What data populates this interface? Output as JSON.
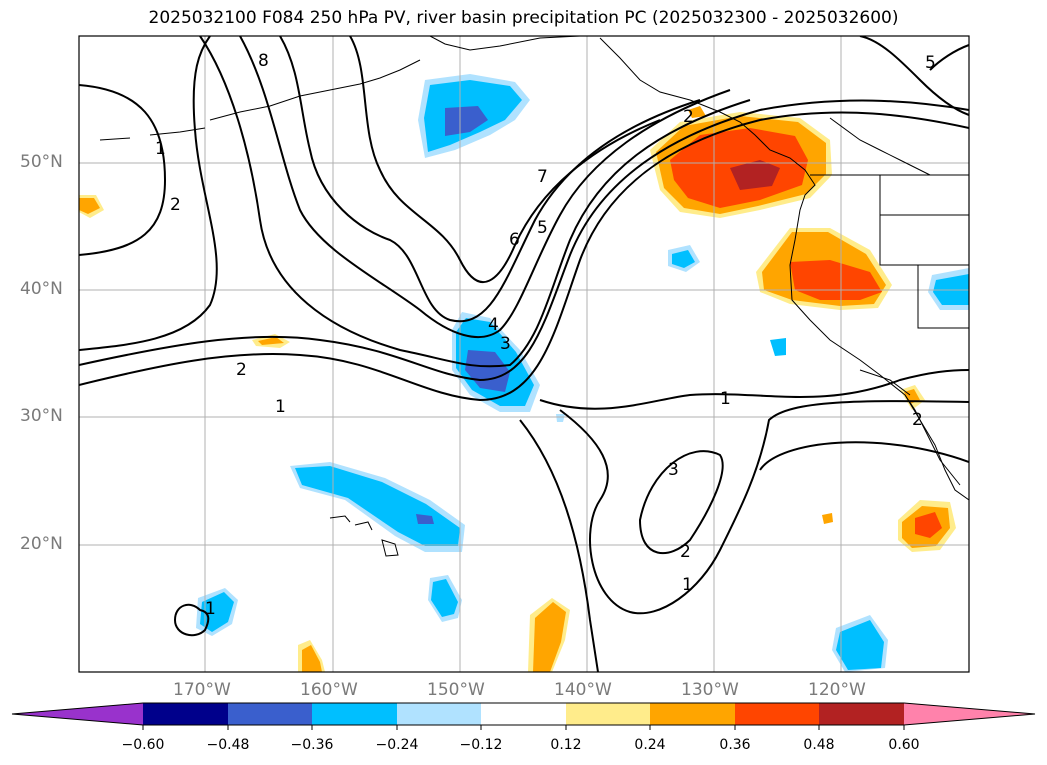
{
  "title": "2025032100 F084 250 hPa PV, river basin precipitation PC (2025032300 - 2025032600)",
  "lat_labels": [
    "50°N",
    "40°N",
    "30°N",
    "20°N"
  ],
  "lon_labels": [
    "170°W",
    "160°W",
    "150°W",
    "140°W",
    "130°W",
    "120°W"
  ],
  "contour_labels": [
    "8",
    "1",
    "2",
    "7",
    "6",
    "5",
    "4",
    "3",
    "2",
    "1",
    "1",
    "3",
    "2",
    "1",
    "2",
    "2",
    "5",
    "1"
  ],
  "colorbar": {
    "ticks": [
      "−0.60",
      "−0.48",
      "−0.36",
      "−0.24",
      "−0.12",
      "0.12",
      "0.24",
      "0.36",
      "0.48",
      "0.60"
    ],
    "colors": [
      "#9932cc",
      "#00008b",
      "#3a5fcd",
      "#00bfff",
      "#b0e2ff",
      "#ffffff",
      "#ffec8b",
      "#ffa500",
      "#ff4500",
      "#b22222",
      "#ff82ab"
    ]
  },
  "colors": {
    "gridline": "#b0b0b0",
    "contour": "#000000",
    "axis_label": "#7a7a7a"
  }
}
